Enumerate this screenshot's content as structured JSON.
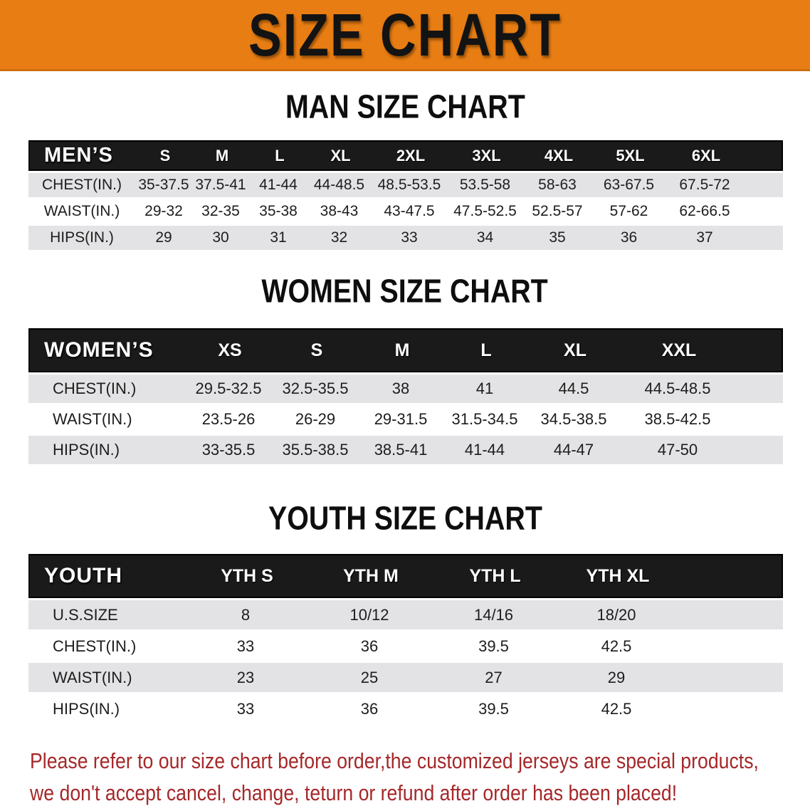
{
  "banner": {
    "title": "SIZE CHART"
  },
  "sections": [
    {
      "id": "men",
      "heading": "MAN SIZE CHART",
      "header_label": "MEN’S",
      "columns": [
        "S",
        "M",
        "L",
        "XL",
        "2XL",
        "3XL",
        "4XL",
        "5XL",
        "6XL"
      ],
      "rows": [
        {
          "label": "CHEST(IN.)",
          "values": [
            "35-37.5",
            "37.5-41",
            "41-44",
            "44-48.5",
            "48.5-53.5",
            "53.5-58",
            "58-63",
            "63-67.5",
            "67.5-72"
          ]
        },
        {
          "label": "WAIST(IN.)",
          "values": [
            "29-32",
            "32-35",
            "35-38",
            "38-43",
            "43-47.5",
            "47.5-52.5",
            "52.5-57",
            "57-62",
            "62-66.5"
          ]
        },
        {
          "label": "HIPS(IN.)",
          "values": [
            "29",
            "30",
            "31",
            "32",
            "33",
            "34",
            "35",
            "36",
            "37"
          ]
        }
      ]
    },
    {
      "id": "women",
      "heading": "WOMEN SIZE CHART",
      "header_label": "WOMEN’S",
      "columns": [
        "XS",
        "S",
        "M",
        "L",
        "XL",
        "XXL"
      ],
      "rows": [
        {
          "label": "CHEST(IN.)",
          "values": [
            "29.5-32.5",
            "32.5-35.5",
            "38",
            "41",
            "44.5",
            "44.5-48.5"
          ]
        },
        {
          "label": "WAIST(IN.)",
          "values": [
            "23.5-26",
            "26-29",
            "29-31.5",
            "31.5-34.5",
            "34.5-38.5",
            "38.5-42.5"
          ]
        },
        {
          "label": "HIPS(IN.)",
          "values": [
            "33-35.5",
            "35.5-38.5",
            "38.5-41",
            "41-44",
            "44-47",
            "47-50"
          ]
        }
      ]
    },
    {
      "id": "youth",
      "heading": "YOUTH SIZE CHART",
      "header_label": "YOUTH",
      "columns": [
        "YTH S",
        "YTH M",
        "YTH L",
        "YTH XL"
      ],
      "rows": [
        {
          "label": "U.S.SIZE",
          "values": [
            "8",
            "10/12",
            "14/16",
            "18/20"
          ]
        },
        {
          "label": "CHEST(IN.)",
          "values": [
            "33",
            "36",
            "39.5",
            "42.5"
          ]
        },
        {
          "label": "WAIST(IN.)",
          "values": [
            "23",
            "25",
            "27",
            "29"
          ]
        },
        {
          "label": "HIPS(IN.)",
          "values": [
            "33",
            "36",
            "39.5",
            "42.5"
          ]
        }
      ]
    }
  ],
  "footer": {
    "line1": "Please refer to our size chart before order,the customized jerseys are special products,",
    "line2": "we don't accept cancel, change, teturn or refund after order has been placed!"
  },
  "colors": {
    "banner_bg": "#e87d13",
    "header_bg": "#1a1a1a",
    "row_shade": "#e3e3e5",
    "notice_color": "#a5282a"
  }
}
